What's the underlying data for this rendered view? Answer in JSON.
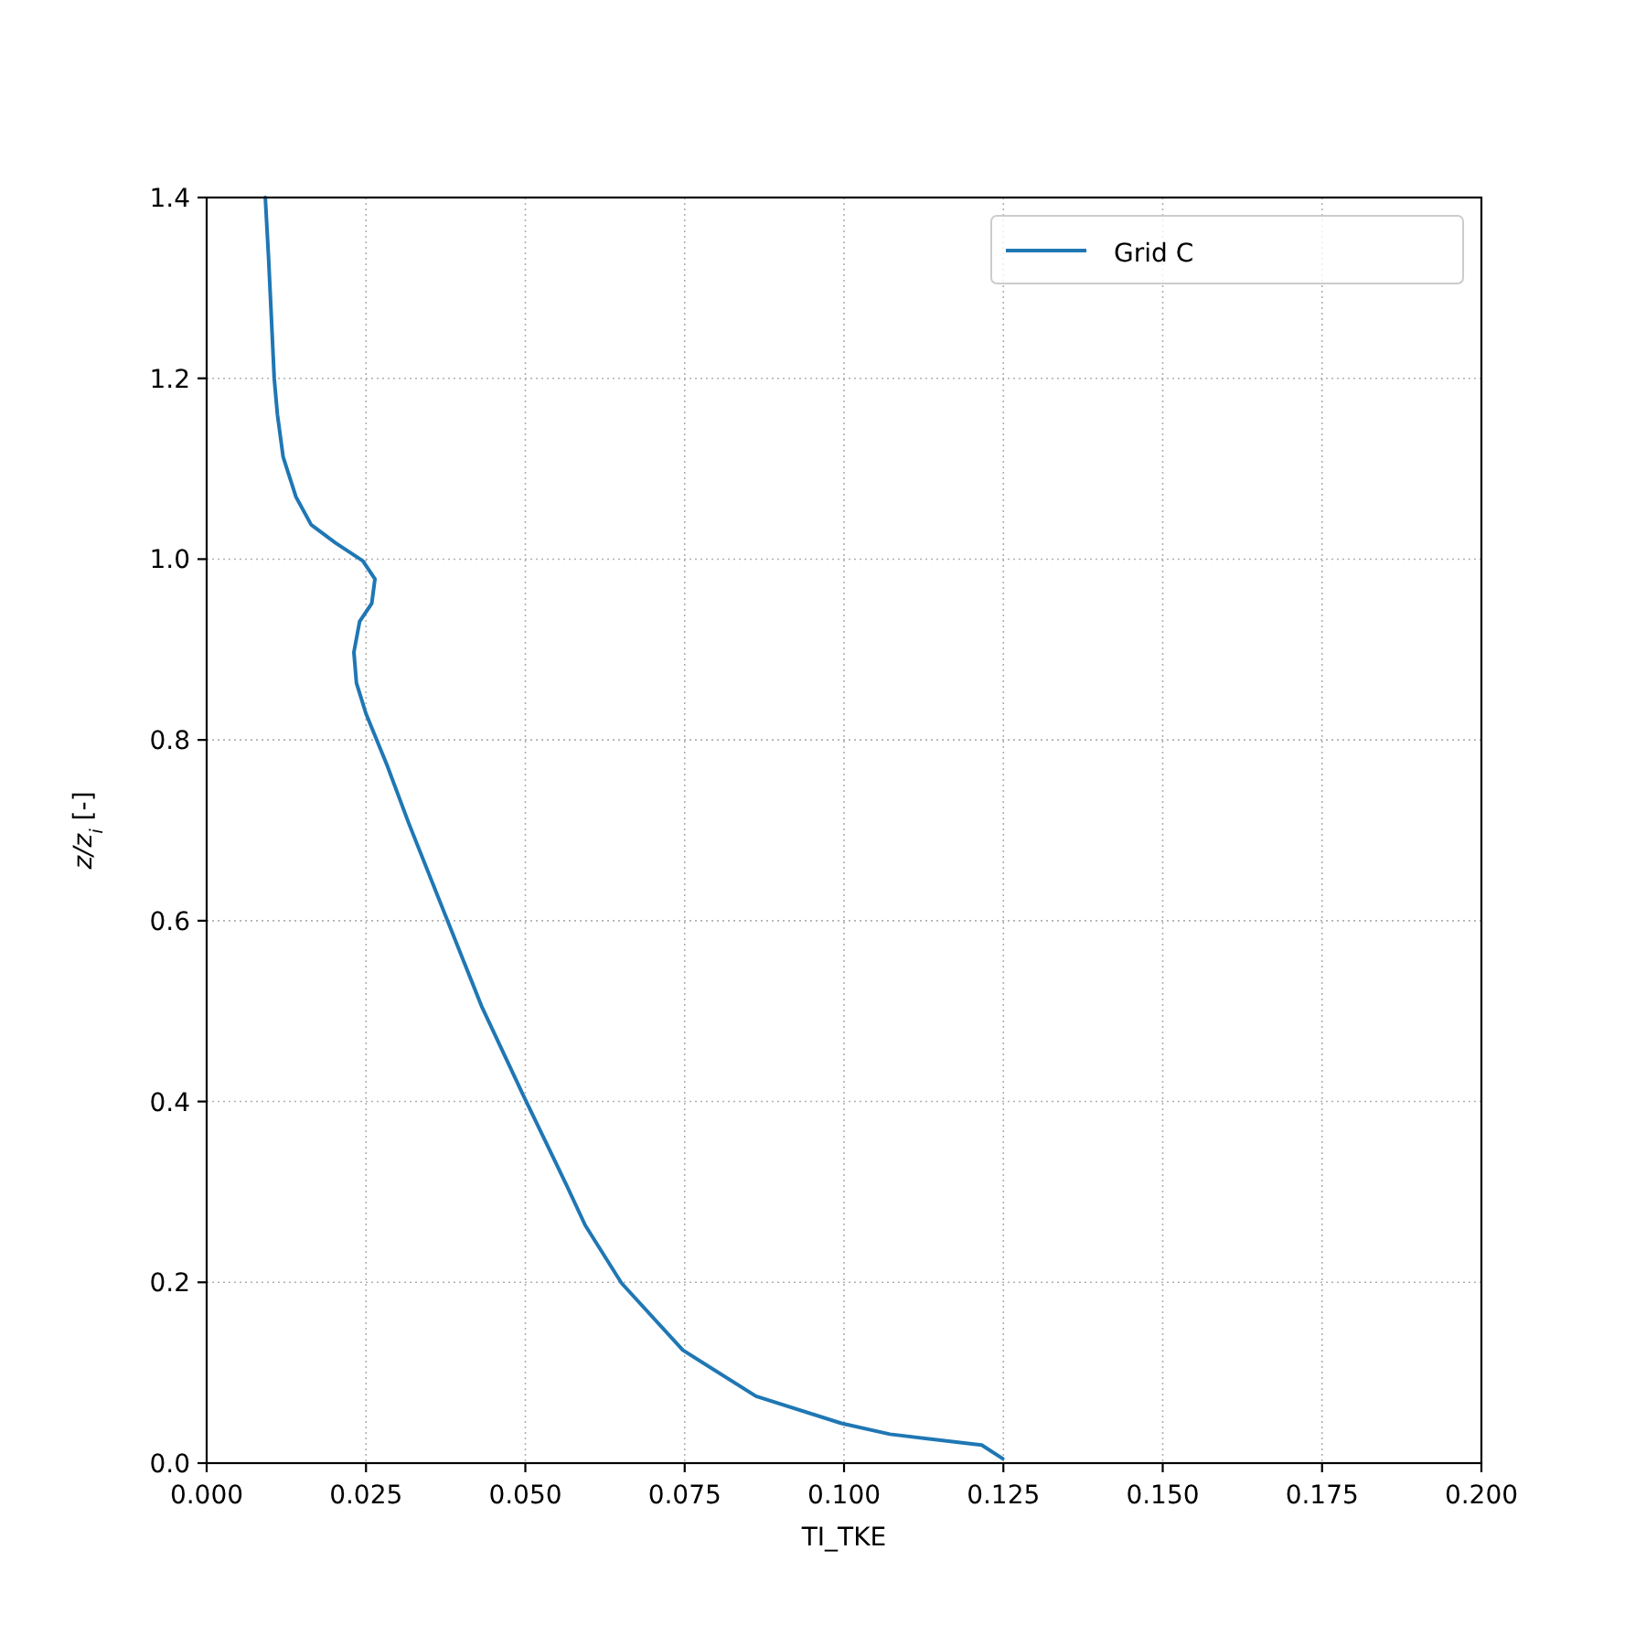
{
  "chart_data": {
    "type": "line",
    "xlabel": "TI_TKE",
    "ylabel": "z/z$_{i}$ [-]",
    "xlim": [
      0,
      0.2
    ],
    "ylim": [
      0,
      1.4
    ],
    "xticks": [
      {
        "value": 0,
        "label": "0.000"
      },
      {
        "value": 0.025,
        "label": "0.025"
      },
      {
        "value": 0.05,
        "label": "0.050"
      },
      {
        "value": 0.075,
        "label": "0.075"
      },
      {
        "value": 0.1,
        "label": "0.100"
      },
      {
        "value": 0.125,
        "label": "0.125"
      },
      {
        "value": 0.15,
        "label": "0.150"
      },
      {
        "value": 0.175,
        "label": "0.175"
      },
      {
        "value": 0.2,
        "label": "0.200"
      }
    ],
    "yticks": [
      {
        "value": 0,
        "label": "0.0"
      },
      {
        "value": 0.2,
        "label": "0.2"
      },
      {
        "value": 0.4,
        "label": "0.4"
      },
      {
        "value": 0.6,
        "label": "0.6"
      },
      {
        "value": 0.8,
        "label": "0.8"
      },
      {
        "value": 1.0,
        "label": "1.0"
      },
      {
        "value": 1.2,
        "label": "1.2"
      },
      {
        "value": 1.4,
        "label": "1.4"
      }
    ],
    "grid": true,
    "legend": "top right",
    "line_style": "solid",
    "marker": "none",
    "series": [
      {
        "name": "Grid C",
        "color": "#1f77b4",
        "x": [
          0.0092,
          0.0097,
          0.0106,
          0.0111,
          0.012,
          0.014,
          0.0164,
          0.0202,
          0.0245,
          0.0264,
          0.0259,
          0.024,
          0.0231,
          0.0235,
          0.025,
          0.0283,
          0.0317,
          0.0374,
          0.0431,
          0.0498,
          0.0565,
          0.0594,
          0.0651,
          0.0747,
          0.0862,
          0.0996,
          0.1072,
          0.1216,
          0.1249
        ],
        "values": [
          1.4,
          1.335,
          1.2,
          1.16,
          1.113,
          1.069,
          1.038,
          1.018,
          0.998,
          0.978,
          0.951,
          0.931,
          0.897,
          0.863,
          0.829,
          0.772,
          0.708,
          0.607,
          0.506,
          0.405,
          0.307,
          0.263,
          0.199,
          0.125,
          0.074,
          0.044,
          0.032,
          0.02,
          0.005
        ]
      }
    ]
  }
}
